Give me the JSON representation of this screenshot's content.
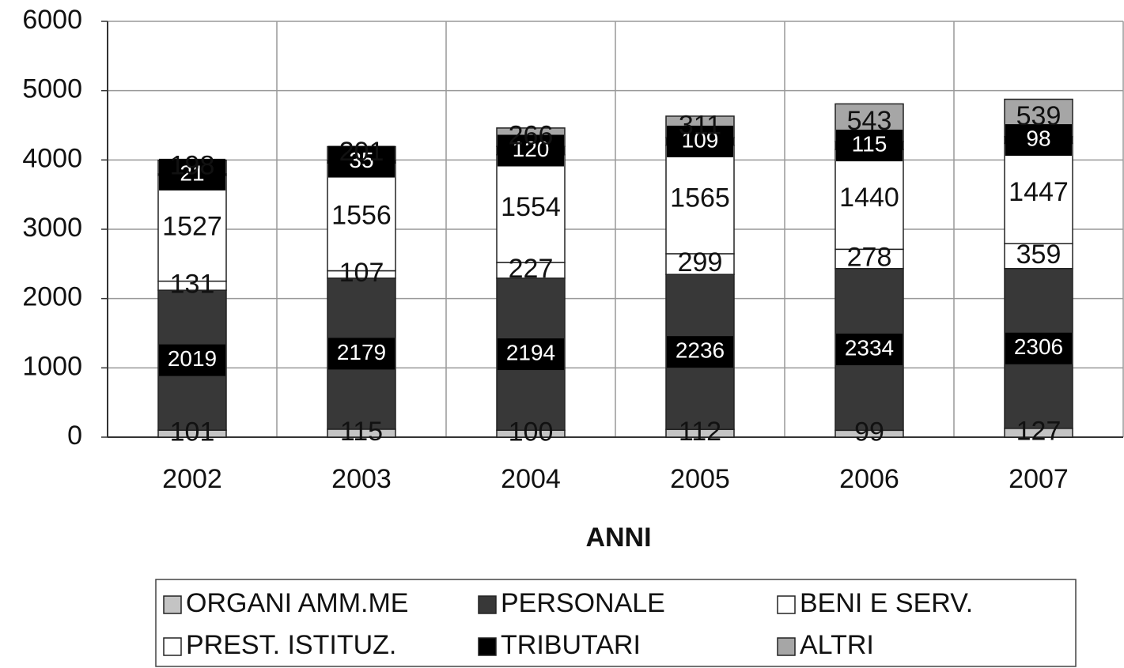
{
  "chart_data": {
    "type": "stacked_bar",
    "x_label": "ANNI",
    "categories": [
      "2002",
      "2003",
      "2004",
      "2005",
      "2006",
      "2007"
    ],
    "series": [
      {
        "name": "ORGANI AMM.ME",
        "color": "#c4c4c4",
        "values": [
          101,
          115,
          100,
          112,
          99,
          127
        ]
      },
      {
        "name": "PERSONALE",
        "color": "#383838",
        "values": [
          2019,
          2179,
          2194,
          2236,
          2334,
          2306
        ]
      },
      {
        "name": "BENI E SERV.",
        "color": "#ffffff",
        "values": [
          131,
          107,
          227,
          299,
          278,
          359
        ]
      },
      {
        "name": "PREST. ISTITUZ.",
        "color": "#ffffff",
        "values": [
          1527,
          1556,
          1554,
          1565,
          1440,
          1447
        ]
      },
      {
        "name": "TRIBUTARI",
        "color": "#000000",
        "values": [
          21,
          35,
          120,
          109,
          115,
          98
        ]
      },
      {
        "name": "ALTRI",
        "color": "#a6a6a6",
        "values": [
          198,
          201,
          266,
          311,
          543,
          539
        ]
      }
    ],
    "ylim": [
      0,
      6000
    ],
    "yticks": [
      0,
      1000,
      2000,
      3000,
      4000,
      5000,
      6000
    ],
    "grid": true
  }
}
